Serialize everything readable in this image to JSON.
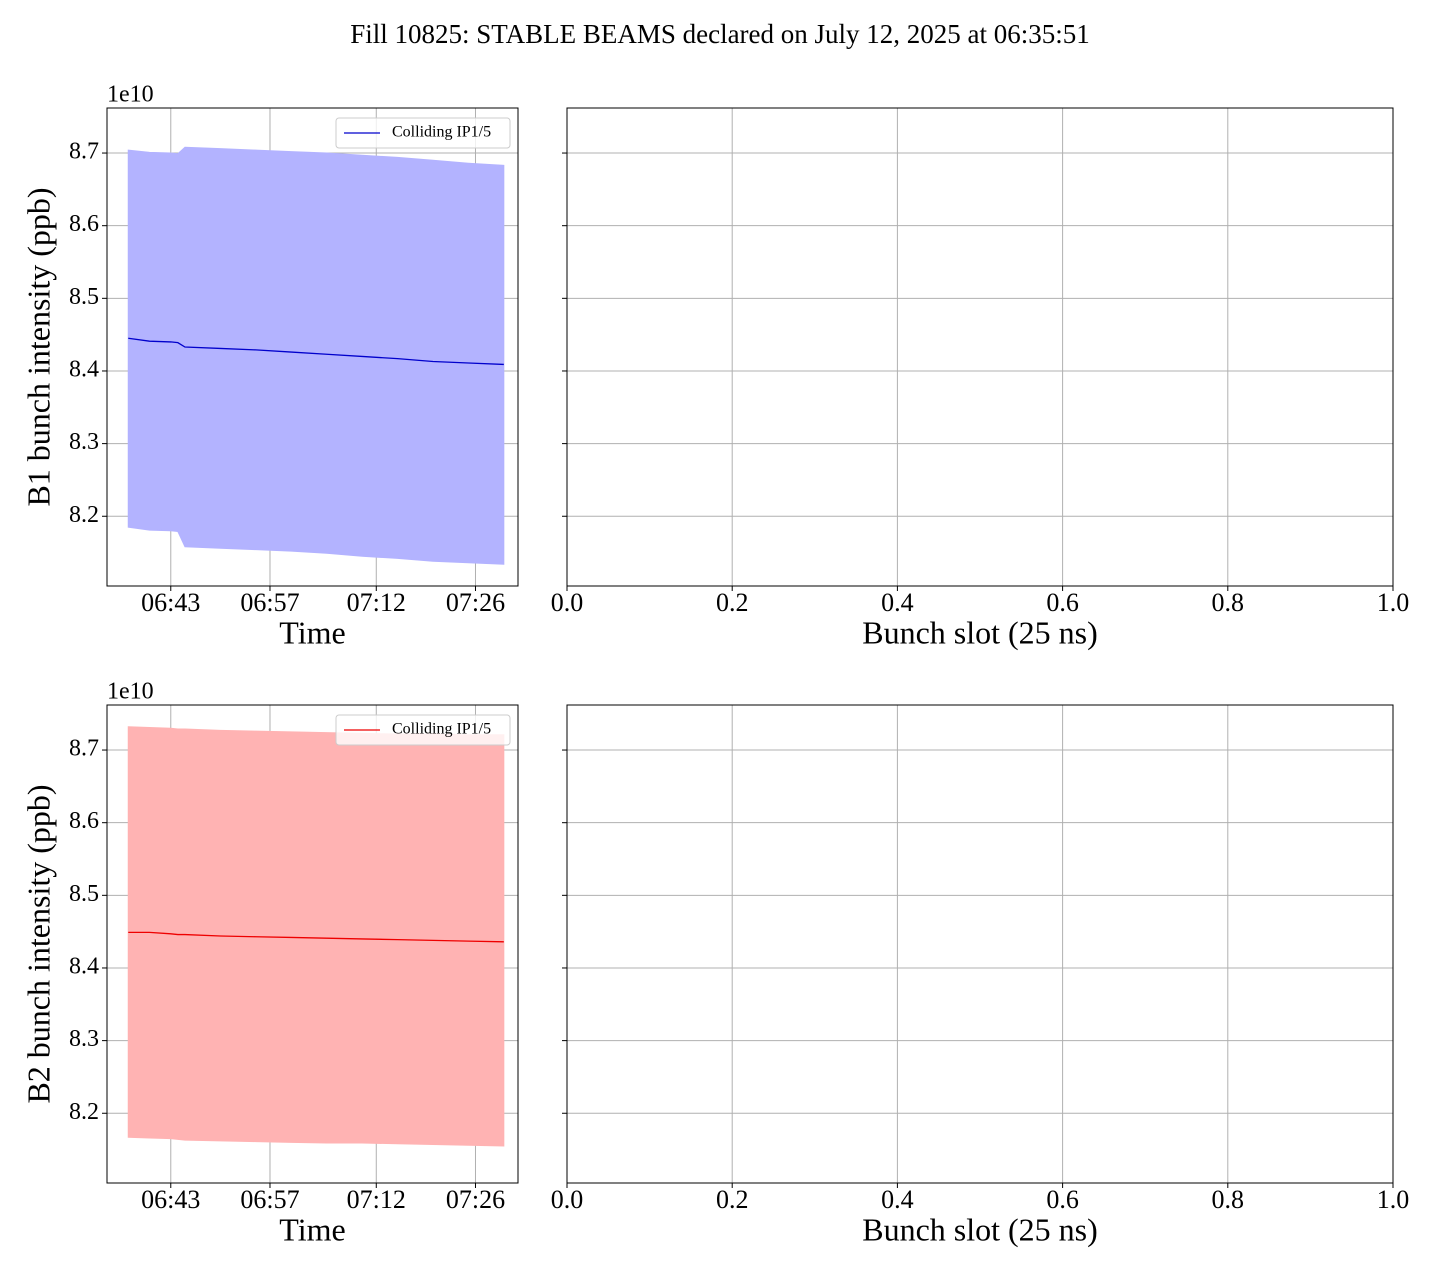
{
  "title": "Fill 10825: STABLE BEAMS declared on July 12, 2025 at 06:35:51",
  "chart_data": [
    {
      "type": "line",
      "xlabel": "Time",
      "ylabel": "B1 bunch intensity (ppb)",
      "y_offset_label": "1e10",
      "x": [
        "06:37",
        "06:40",
        "06:43",
        "06:44",
        "06:45",
        "06:50",
        "06:55",
        "07:00",
        "07:05",
        "07:10",
        "07:15",
        "07:20",
        "07:25",
        "07:30"
      ],
      "series": [
        {
          "name": "Colliding IP1/5",
          "color": "#0000cc",
          "band_color": "#b3b3ff",
          "values": [
            8.445,
            8.441,
            8.44,
            8.439,
            8.433,
            8.431,
            8.429,
            8.426,
            8.423,
            8.42,
            8.417,
            8.413,
            8.411,
            8.409
          ],
          "upper": [
            8.704,
            8.701,
            8.7,
            8.699,
            8.708,
            8.706,
            8.704,
            8.702,
            8.7,
            8.697,
            8.694,
            8.69,
            8.686,
            8.683
          ],
          "lower": [
            8.185,
            8.181,
            8.18,
            8.179,
            8.158,
            8.156,
            8.154,
            8.152,
            8.149,
            8.145,
            8.142,
            8.138,
            8.136,
            8.134
          ]
        }
      ],
      "xlim": [
        "06:34",
        "07:32"
      ],
      "xticks": [
        "06:43",
        "06:57",
        "07:12",
        "07:26"
      ],
      "ylim": [
        8.104,
        8.762
      ],
      "yticks": [
        8.2,
        8.3,
        8.4,
        8.5,
        8.6,
        8.7
      ],
      "grid": true,
      "legend": "upper right"
    },
    {
      "type": "line",
      "xlabel": "Bunch slot (25 ns)",
      "series": [],
      "xlim": [
        0,
        1
      ],
      "xticks": [
        {
          "value": 0,
          "label": "0.0"
        },
        0.2,
        0.4,
        0.6,
        0.8,
        {
          "value": 1,
          "label": "1.0"
        }
      ],
      "ylim": [
        8.104,
        8.762
      ],
      "yticks": [
        8.2,
        8.3,
        8.4,
        8.5,
        8.6,
        8.7
      ],
      "grid": true
    },
    {
      "type": "line",
      "xlabel": "Time",
      "ylabel": "B2 bunch intensity (ppb)",
      "y_offset_label": "1e10",
      "x": [
        "06:37",
        "06:40",
        "06:43",
        "06:44",
        "06:45",
        "06:50",
        "06:55",
        "07:00",
        "07:05",
        "07:10",
        "07:15",
        "07:20",
        "07:25",
        "07:30"
      ],
      "series": [
        {
          "name": "Colliding IP1/5",
          "color": "#ee0000",
          "band_color": "#ffb3b3",
          "values": [
            8.449,
            8.449,
            8.447,
            8.446,
            8.446,
            8.444,
            8.443,
            8.442,
            8.441,
            8.44,
            8.439,
            8.438,
            8.437,
            8.436
          ],
          "upper": [
            8.732,
            8.731,
            8.73,
            8.729,
            8.729,
            8.727,
            8.726,
            8.725,
            8.724,
            8.723,
            8.722,
            8.722,
            8.721,
            8.721
          ],
          "lower": [
            8.167,
            8.166,
            8.165,
            8.164,
            8.163,
            8.162,
            8.161,
            8.16,
            8.159,
            8.159,
            8.158,
            8.157,
            8.156,
            8.155
          ]
        }
      ],
      "xlim": [
        "06:34",
        "07:32"
      ],
      "xticks": [
        "06:43",
        "06:57",
        "07:12",
        "07:26"
      ],
      "ylim": [
        8.104,
        8.762
      ],
      "yticks": [
        8.2,
        8.3,
        8.4,
        8.5,
        8.6,
        8.7
      ],
      "grid": true,
      "legend": "upper right"
    },
    {
      "type": "line",
      "xlabel": "Bunch slot (25 ns)",
      "series": [],
      "xlim": [
        0,
        1
      ],
      "xticks": [
        {
          "value": 0,
          "label": "0.0"
        },
        0.2,
        0.4,
        0.6,
        0.8,
        {
          "value": 1,
          "label": "1.0"
        }
      ],
      "ylim": [
        8.104,
        8.762
      ],
      "yticks": [
        8.2,
        8.3,
        8.4,
        8.5,
        8.6,
        8.7
      ],
      "grid": true
    }
  ]
}
